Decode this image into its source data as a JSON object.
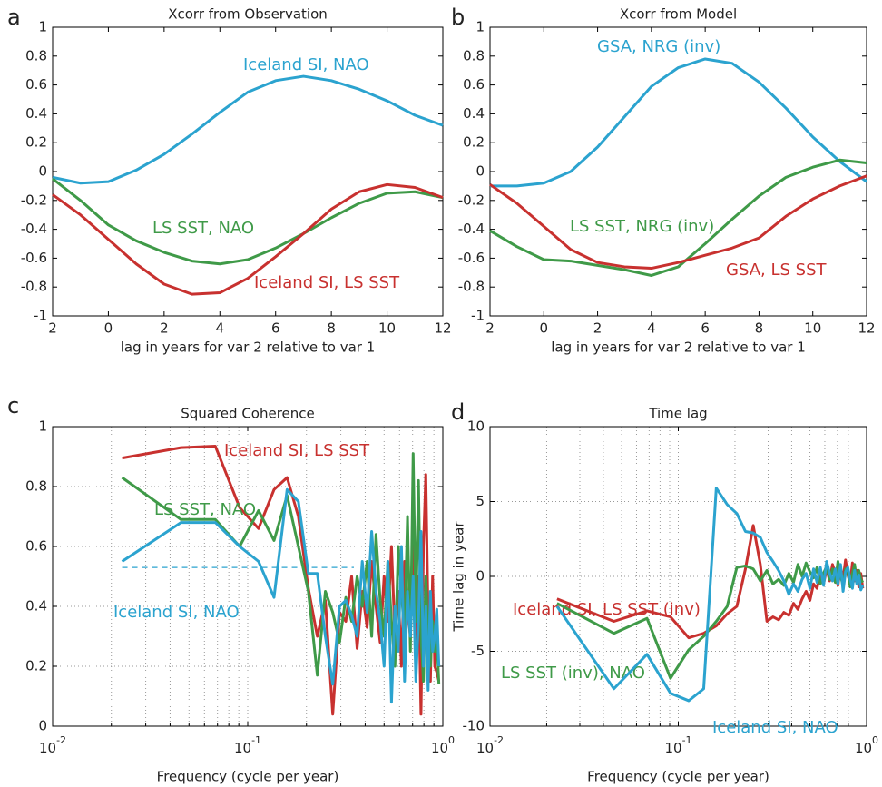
{
  "chart_data": [
    {
      "type": "line",
      "panel_label": "a",
      "title": "Xcorr from Observation",
      "xlabel": "lag in years for var 2 relative to var 1",
      "x": [
        -2,
        -1,
        0,
        1,
        2,
        3,
        4,
        5,
        6,
        7,
        8,
        9,
        10,
        11,
        12
      ],
      "xlim": [
        -2,
        12
      ],
      "xticks": [
        {
          "value": -2,
          "label": "2"
        },
        0,
        2,
        4,
        6,
        8,
        10,
        12
      ],
      "ylim": [
        -1,
        1
      ],
      "yticks": [
        -1,
        -0.8,
        -0.6,
        -0.4,
        -0.2,
        0,
        0.2,
        0.4,
        0.6,
        0.8,
        1
      ],
      "grid": false,
      "series": [
        {
          "name": "Iceland SI, NAO",
          "color": "#2ba3cf",
          "values": [
            -0.04,
            -0.08,
            -0.07,
            0.01,
            0.12,
            0.26,
            0.41,
            0.55,
            0.63,
            0.66,
            0.63,
            0.57,
            0.49,
            0.39,
            0.32
          ]
        },
        {
          "name": "LS SST, NAO",
          "color": "#3f9a48",
          "values": [
            -0.05,
            -0.2,
            -0.37,
            -0.48,
            -0.56,
            -0.62,
            -0.64,
            -0.61,
            -0.53,
            -0.43,
            -0.32,
            -0.22,
            -0.15,
            -0.14,
            -0.18
          ]
        },
        {
          "name": "Iceland SI, LS SST",
          "color": "#c8312f",
          "values": [
            -0.16,
            -0.3,
            -0.47,
            -0.64,
            -0.78,
            -0.85,
            -0.84,
            -0.74,
            -0.59,
            -0.43,
            -0.26,
            -0.14,
            -0.09,
            -0.11,
            -0.18
          ]
        }
      ]
    },
    {
      "type": "line",
      "panel_label": "b",
      "title": "Xcorr from Model",
      "xlabel": "lag in years for var 2 relative to var 1",
      "x": [
        -2,
        -1,
        0,
        1,
        2,
        3,
        4,
        5,
        6,
        7,
        8,
        9,
        10,
        11,
        12
      ],
      "xlim": [
        -2,
        12
      ],
      "xticks": [
        {
          "value": -2,
          "label": "2"
        },
        0,
        2,
        4,
        6,
        8,
        10,
        12
      ],
      "ylim": [
        -1,
        1
      ],
      "yticks": [
        -1,
        -0.8,
        -0.6,
        -0.4,
        -0.2,
        0,
        0.2,
        0.4,
        0.6,
        0.8,
        1
      ],
      "grid": false,
      "series": [
        {
          "name": "GSA, NRG (inv)",
          "color": "#2ba3cf",
          "values": [
            -0.1,
            -0.1,
            -0.08,
            0,
            0.17,
            0.38,
            0.59,
            0.72,
            0.78,
            0.75,
            0.62,
            0.44,
            0.24,
            0.07,
            -0.07
          ]
        },
        {
          "name": "LS SST, NRG (inv)",
          "color": "#3f9a48",
          "values": [
            -0.41,
            -0.52,
            -0.61,
            -0.62,
            -0.65,
            -0.68,
            -0.72,
            -0.66,
            -0.5,
            -0.33,
            -0.17,
            -0.04,
            0.03,
            0.08,
            0.06
          ]
        },
        {
          "name": "GSA, LS SST",
          "color": "#c8312f",
          "values": [
            -0.09,
            -0.22,
            -0.38,
            -0.54,
            -0.63,
            -0.66,
            -0.67,
            -0.63,
            -0.58,
            -0.53,
            -0.46,
            -0.31,
            -0.19,
            -0.1,
            -0.03
          ]
        }
      ]
    },
    {
      "type": "line",
      "panel_label": "c",
      "title": "Squared Coherence",
      "xlabel": "Frequency (cycle per year)",
      "xscale": "log",
      "x": [
        0.0227,
        0.0455,
        0.0682,
        0.0909,
        0.1136,
        0.1364,
        0.1591,
        0.1818,
        0.2045,
        0.2273,
        0.25,
        0.2727,
        0.2955,
        0.3182,
        0.3409,
        0.3636,
        0.3864,
        0.4091,
        0.4318,
        0.4545,
        0.4773,
        0.5,
        0.5227,
        0.5455,
        0.5682,
        0.5909,
        0.6136,
        0.6364,
        0.6591,
        0.6818,
        0.7045,
        0.7273,
        0.75,
        0.7727,
        0.7955,
        0.8182,
        0.8409,
        0.8636,
        0.8864,
        0.9091,
        0.9318,
        0.9545
      ],
      "xlim": [
        0.01,
        1
      ],
      "xticks": [
        {
          "value": 0.01,
          "label": "10",
          "exponent": "-2"
        },
        {
          "value": 0.1,
          "label": "10",
          "exponent": "-1"
        },
        {
          "value": 1,
          "label": "10",
          "exponent": "0"
        }
      ],
      "xminorticks": [
        0.02,
        0.03,
        0.04,
        0.05,
        0.06,
        0.07,
        0.08,
        0.09,
        0.2,
        0.3,
        0.4,
        0.5,
        0.6,
        0.7,
        0.8,
        0.9
      ],
      "ylim": [
        0,
        1
      ],
      "yticks": [
        0,
        0.2,
        0.4,
        0.6,
        0.8,
        1
      ],
      "grid": true,
      "threshold": {
        "value": 0.53,
        "x": [
          0.0227,
          0.35
        ]
      },
      "series": [
        {
          "name": "Iceland SI, LS SST",
          "color": "#c8312f",
          "values": [
            0.895,
            0.93,
            0.935,
            0.73,
            0.66,
            0.79,
            0.83,
            0.7,
            0.46,
            0.3,
            0.42,
            0.04,
            0.38,
            0.35,
            0.5,
            0.26,
            0.45,
            0.33,
            0.55,
            0.4,
            0.28,
            0.5,
            0.35,
            0.6,
            0.3,
            0.45,
            0.2,
            0.55,
            0.4,
            0.3,
            0.65,
            0.25,
            0.5,
            0.04,
            0.6,
            0.84,
            0.35,
            0.15,
            0.5,
            0.2,
            0.18,
            0.15
          ]
        },
        {
          "name": "LS SST, NAO",
          "color": "#3f9a48",
          "values": [
            0.83,
            0.69,
            0.69,
            0.6,
            0.72,
            0.62,
            0.77,
            0.6,
            0.45,
            0.17,
            0.45,
            0.38,
            0.28,
            0.43,
            0.35,
            0.5,
            0.4,
            0.55,
            0.3,
            0.64,
            0.42,
            0.3,
            0.55,
            0.35,
            0.2,
            0.6,
            0.45,
            0.3,
            0.7,
            0.25,
            0.91,
            0.35,
            0.82,
            0.3,
            0.15,
            0.5,
            0.3,
            0.2,
            0.35,
            0.25,
            0.3,
            0.14
          ]
        },
        {
          "name": "Iceland SI, NAO",
          "color": "#2ba3cf",
          "values": [
            0.55,
            0.68,
            0.68,
            0.6,
            0.55,
            0.43,
            0.79,
            0.75,
            0.51,
            0.51,
            0.3,
            0.14,
            0.4,
            0.42,
            0.37,
            0.3,
            0.55,
            0.38,
            0.65,
            0.45,
            0.35,
            0.2,
            0.55,
            0.08,
            0.4,
            0.25,
            0.6,
            0.15,
            0.45,
            0.3,
            0.5,
            0.15,
            0.35,
            0.65,
            0.2,
            0.4,
            0.12,
            0.45,
            0.25,
            0.3,
            0.39,
            0.2
          ]
        }
      ]
    },
    {
      "type": "line",
      "panel_label": "d",
      "title": "Time lag",
      "xlabel": "Frequency (cycle per year)",
      "ylabel": "Time lag in year",
      "xscale": "log",
      "x": [
        0.0227,
        0.0455,
        0.0682,
        0.0909,
        0.1136,
        0.1364,
        0.1591,
        0.1818,
        0.2045,
        0.2273,
        0.25,
        0.2727,
        0.2955,
        0.3182,
        0.3409,
        0.3636,
        0.3864,
        0.4091,
        0.4318,
        0.4545,
        0.4773,
        0.5,
        0.5227,
        0.5455,
        0.5682,
        0.5909,
        0.6136,
        0.6364,
        0.6591,
        0.6818,
        0.7045,
        0.7273,
        0.75,
        0.7727,
        0.7955,
        0.8182,
        0.8409,
        0.8636,
        0.8864,
        0.9091,
        0.9318,
        0.9545
      ],
      "xlim": [
        0.01,
        1
      ],
      "xticks": [
        {
          "value": 0.01,
          "label": "10",
          "exponent": "-2"
        },
        {
          "value": 0.1,
          "label": "10",
          "exponent": "-1"
        },
        {
          "value": 1,
          "label": "10",
          "exponent": "0"
        }
      ],
      "xminorticks": [
        0.02,
        0.03,
        0.04,
        0.05,
        0.06,
        0.07,
        0.08,
        0.09,
        0.2,
        0.3,
        0.4,
        0.5,
        0.6,
        0.7,
        0.8,
        0.9
      ],
      "ylim": [
        -10,
        10
      ],
      "yticks": [
        -10,
        -5,
        0,
        5,
        10
      ],
      "grid": true,
      "series": [
        {
          "name": "Iceland SI, LS SST (inv)",
          "color": "#c8312f",
          "values": [
            -1.5,
            -3.0,
            -2.3,
            -2.7,
            -4.1,
            -3.8,
            -3.3,
            -2.5,
            -2.0,
            0.5,
            3.4,
            0.8,
            -3.0,
            -2.7,
            -2.9,
            -2.4,
            -2.6,
            -1.8,
            -2.2,
            -1.5,
            -1.0,
            -1.6,
            -0.5,
            -0.8,
            0.3,
            -0.5,
            0.5,
            -0.3,
            0.8,
            0.2,
            -0.6,
            0.6,
            -0.2,
            1.1,
            0.1,
            -0.5,
            0.9,
            -0.3,
            0.4,
            -0.7,
            0.2,
            -0.8
          ]
        },
        {
          "name": "LS SST (inv), NAO",
          "color": "#3f9a48",
          "values": [
            -1.8,
            -3.8,
            -2.8,
            -6.8,
            -4.9,
            -4.0,
            -3.0,
            -2.0,
            0.6,
            0.7,
            0.5,
            -0.3,
            0.4,
            -0.5,
            -0.2,
            -0.6,
            0.2,
            -0.4,
            0.8,
            0.0,
            0.9,
            0.3,
            -0.1,
            0.6,
            -0.5,
            0.2,
            0.7,
            -0.2,
            0.5,
            -0.4,
            1.0,
            0.0,
            -0.6,
            0.5,
            0.3,
            -0.7,
            0.2,
            0.8,
            -0.3,
            0.4,
            -0.2,
            -0.4
          ]
        },
        {
          "name": "Iceland SI, NAO",
          "color": "#2ba3cf",
          "values": [
            -2.0,
            -7.5,
            -5.2,
            -7.8,
            -8.3,
            -7.5,
            5.9,
            4.8,
            4.2,
            3.0,
            2.9,
            2.6,
            1.6,
            1.0,
            0.4,
            -0.3,
            -1.2,
            -0.5,
            -1.0,
            -0.2,
            0.2,
            -0.8,
            0.5,
            -0.4,
            0.6,
            -0.6,
            1.0,
            0.2,
            -0.3,
            0.5,
            -0.5,
            0.8,
            -1.0,
            0.3,
            0.6,
            -0.2,
            -0.8,
            0.4,
            -0.5,
            0.1,
            -0.9,
            -0.6
          ]
        }
      ]
    }
  ]
}
